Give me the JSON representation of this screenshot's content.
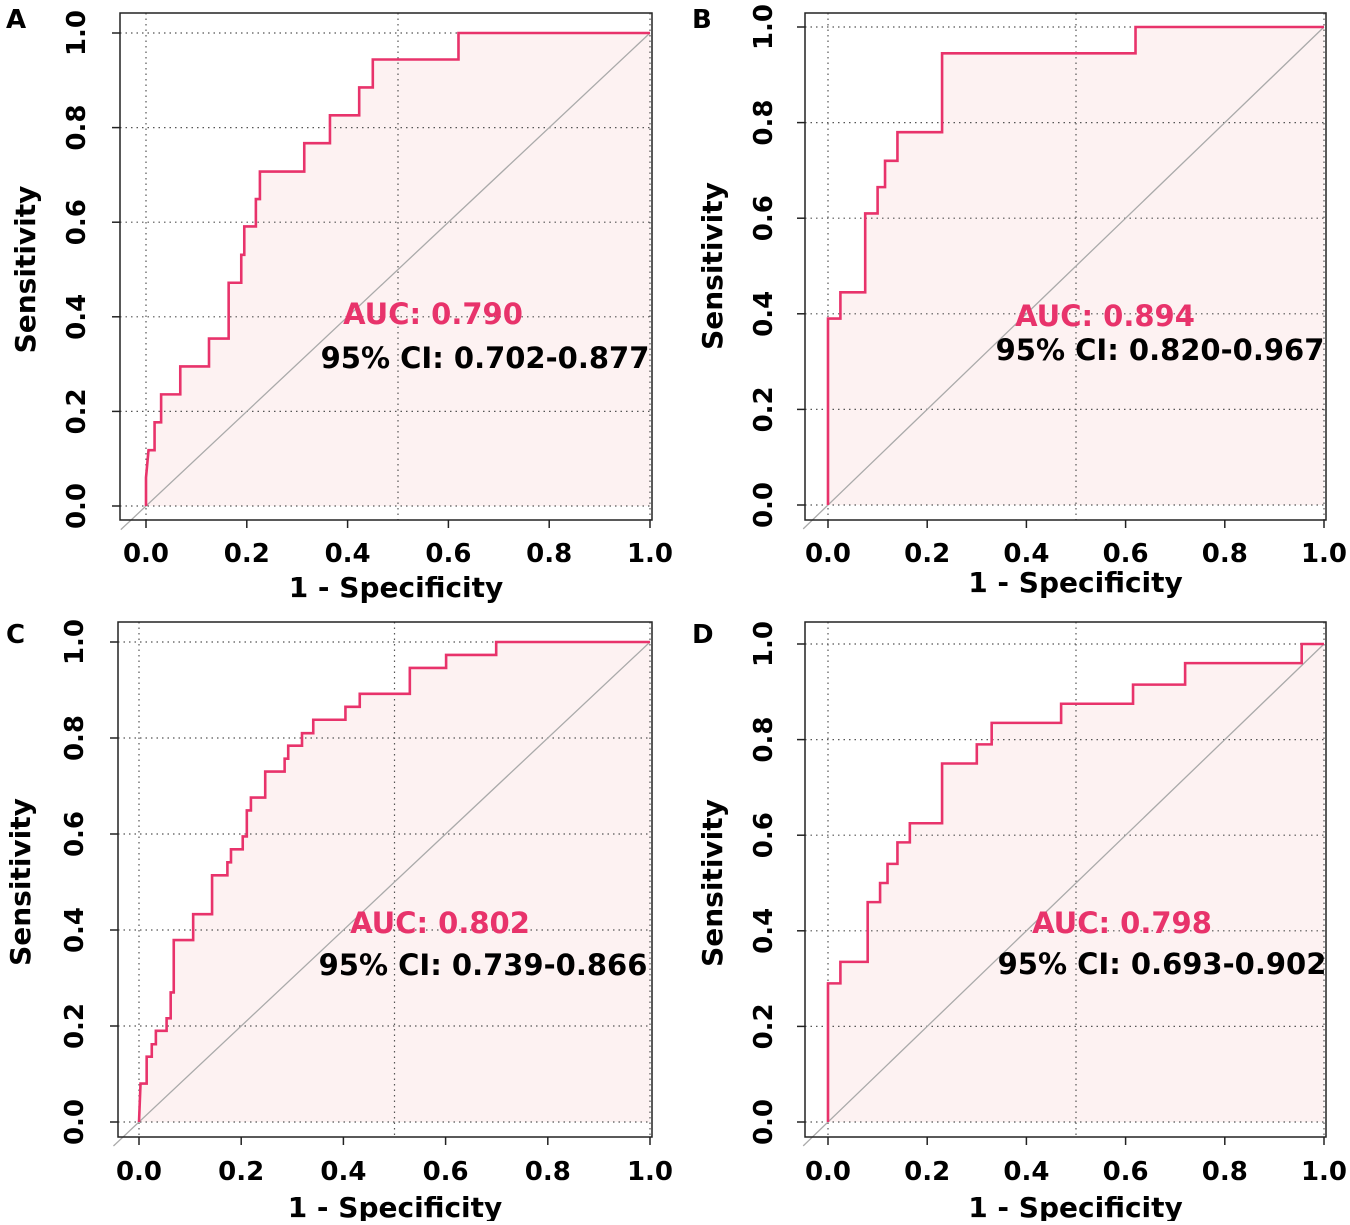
{
  "colors": {
    "curve": "#e8336b",
    "fill": "#fdf2f2",
    "diagonal": "#aaaaaa",
    "auc_text": "#e8336b",
    "text": "#000000"
  },
  "chart_data": [
    {
      "type": "line",
      "panel": "A",
      "xlabel": "1 - Specificity",
      "ylabel": "Sensitivity",
      "xlim": [
        0,
        1
      ],
      "ylim": [
        0,
        1
      ],
      "xticks": [
        "0.0",
        "0.2",
        "0.4",
        "0.6",
        "0.8",
        "1.0"
      ],
      "yticks": [
        "0.0",
        "0.2",
        "0.4",
        "0.6",
        "0.8",
        "1.0"
      ],
      "auc_label": "AUC: 0.790",
      "ci_label": "95% CI: 0.702-0.877",
      "x": [
        0,
        0,
        0.005,
        0.017,
        0.017,
        0.03,
        0.03,
        0.068,
        0.068,
        0.125,
        0.125,
        0.164,
        0.164,
        0.189,
        0.189,
        0.195,
        0.195,
        0.218,
        0.218,
        0.226,
        0.226,
        0.314,
        0.314,
        0.365,
        0.365,
        0.423,
        0.423,
        0.45,
        0.45,
        0.62,
        0.62,
        1
      ],
      "y": [
        0,
        0.06,
        0.118,
        0.118,
        0.177,
        0.177,
        0.236,
        0.236,
        0.295,
        0.295,
        0.354,
        0.354,
        0.472,
        0.472,
        0.531,
        0.531,
        0.591,
        0.591,
        0.649,
        0.649,
        0.707,
        0.707,
        0.767,
        0.767,
        0.826,
        0.826,
        0.885,
        0.885,
        0.944,
        0.944,
        1,
        1
      ]
    },
    {
      "type": "line",
      "panel": "B",
      "xlabel": "1 - Specificity",
      "ylabel": "Sensitivity",
      "xlim": [
        0,
        1
      ],
      "ylim": [
        0,
        1
      ],
      "xticks": [
        "0.0",
        "0.2",
        "0.4",
        "0.6",
        "0.8",
        "1.0"
      ],
      "yticks": [
        "0.0",
        "0.2",
        "0.4",
        "0.6",
        "0.8",
        "1.0"
      ],
      "auc_label": "AUC: 0.894",
      "ci_label": "95% CI: 0.820-0.967",
      "x": [
        0,
        0,
        0.025,
        0.025,
        0.075,
        0.075,
        0.1,
        0.1,
        0.115,
        0.115,
        0.14,
        0.14,
        0.23,
        0.23,
        0.62,
        0.62,
        1
      ],
      "y": [
        0,
        0.39,
        0.39,
        0.445,
        0.445,
        0.61,
        0.61,
        0.665,
        0.665,
        0.72,
        0.72,
        0.78,
        0.78,
        0.945,
        0.945,
        1,
        1
      ]
    },
    {
      "type": "line",
      "panel": "C",
      "xlabel": "1 - Specificity",
      "ylabel": "Sensitivity",
      "xlim": [
        0,
        1
      ],
      "ylim": [
        0,
        1
      ],
      "xticks": [
        "0.0",
        "0.2",
        "0.4",
        "0.6",
        "0.8",
        "1.0"
      ],
      "yticks": [
        "0.0",
        "0.2",
        "0.4",
        "0.6",
        "0.8",
        "1.0"
      ],
      "auc_label": "AUC: 0.802",
      "ci_label": "95% CI: 0.739-0.866",
      "x": [
        0,
        0.003,
        0.003,
        0.015,
        0.015,
        0.025,
        0.025,
        0.033,
        0.033,
        0.054,
        0.054,
        0.062,
        0.062,
        0.068,
        0.068,
        0.106,
        0.106,
        0.143,
        0.143,
        0.173,
        0.173,
        0.18,
        0.18,
        0.203,
        0.203,
        0.211,
        0.211,
        0.219,
        0.219,
        0.247,
        0.247,
        0.285,
        0.285,
        0.292,
        0.292,
        0.319,
        0.319,
        0.341,
        0.341,
        0.404,
        0.404,
        0.432,
        0.432,
        0.53,
        0.53,
        0.601,
        0.601,
        0.699,
        0.699,
        1
      ],
      "y": [
        0,
        0.08,
        0.08,
        0.08,
        0.136,
        0.136,
        0.162,
        0.162,
        0.19,
        0.19,
        0.216,
        0.216,
        0.27,
        0.27,
        0.379,
        0.379,
        0.433,
        0.433,
        0.514,
        0.514,
        0.541,
        0.541,
        0.568,
        0.568,
        0.595,
        0.595,
        0.649,
        0.649,
        0.676,
        0.676,
        0.73,
        0.73,
        0.757,
        0.757,
        0.784,
        0.784,
        0.81,
        0.81,
        0.838,
        0.838,
        0.865,
        0.865,
        0.892,
        0.892,
        0.946,
        0.946,
        0.973,
        0.973,
        1,
        1
      ]
    },
    {
      "type": "line",
      "panel": "D",
      "xlabel": "1 - Specificity",
      "ylabel": "Sensitivity",
      "xlim": [
        0,
        1
      ],
      "ylim": [
        0,
        1
      ],
      "xticks": [
        "0.0",
        "0.2",
        "0.4",
        "0.6",
        "0.8",
        "1.0"
      ],
      "yticks": [
        "0.0",
        "0.2",
        "0.4",
        "0.6",
        "0.8",
        "1.0"
      ],
      "auc_label": "AUC: 0.798",
      "ci_label": "95% CI: 0.693-0.902",
      "x": [
        0,
        0,
        0.025,
        0.025,
        0.08,
        0.08,
        0.105,
        0.105,
        0.12,
        0.12,
        0.14,
        0.14,
        0.165,
        0.165,
        0.23,
        0.23,
        0.3,
        0.3,
        0.33,
        0.33,
        0.47,
        0.47,
        0.615,
        0.615,
        0.72,
        0.72,
        0.955,
        0.955,
        1
      ],
      "y": [
        0,
        0.29,
        0.29,
        0.335,
        0.335,
        0.46,
        0.46,
        0.5,
        0.5,
        0.54,
        0.54,
        0.585,
        0.585,
        0.625,
        0.625,
        0.75,
        0.75,
        0.79,
        0.79,
        0.835,
        0.835,
        0.875,
        0.875,
        0.915,
        0.915,
        0.96,
        0.96,
        1,
        1
      ]
    }
  ]
}
